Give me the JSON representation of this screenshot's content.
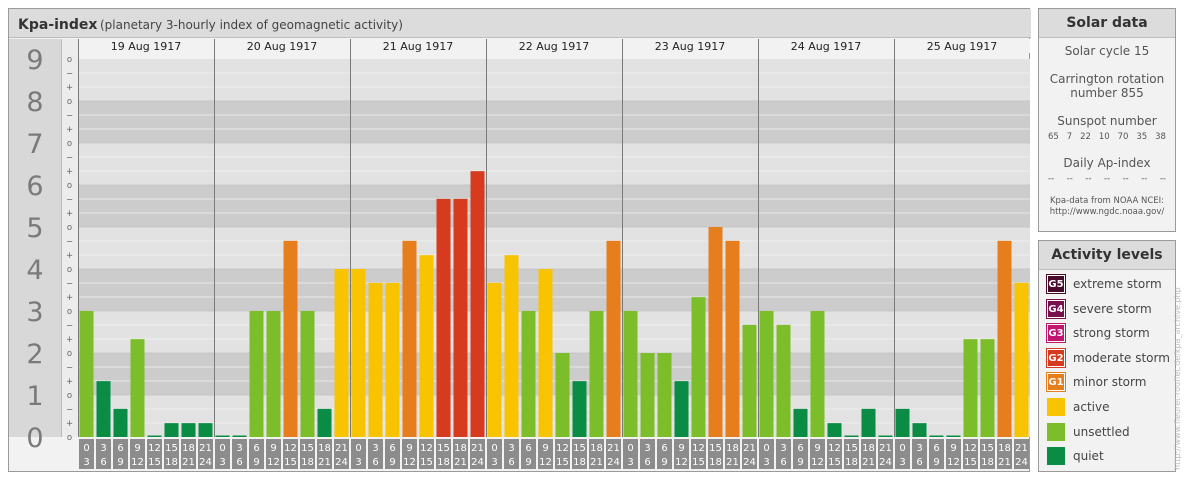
{
  "header": {
    "title": "Kpa-index",
    "subtitle": "(planetary 3-hourly index of geomagnetic activity)"
  },
  "chart_data": {
    "type": "bar",
    "title": "Kpa-index",
    "subtitle": "(planetary 3-hourly index of geomagnetic activity)",
    "ylim": [
      0,
      9
    ],
    "y_ticks": [
      "0",
      "1",
      "2",
      "3",
      "4",
      "5",
      "6",
      "7",
      "8",
      "9"
    ],
    "y_minor_ticks": [
      "−",
      "o",
      "+"
    ],
    "dates": [
      "19 Aug 1917",
      "20 Aug 1917",
      "21 Aug 1917",
      "22 Aug 1917",
      "23 Aug 1917",
      "24 Aug 1917",
      "25 Aug 1917"
    ],
    "interval_top": [
      "0",
      "3",
      "6",
      "9",
      "12",
      "15",
      "18",
      "21"
    ],
    "interval_bottom": [
      "3",
      "6",
      "9",
      "12",
      "15",
      "18",
      "21",
      "24"
    ],
    "values": [
      [
        3.0,
        1.33,
        0.67,
        2.33,
        0.0,
        0.33,
        0.33,
        0.33
      ],
      [
        0.0,
        0.0,
        3.0,
        3.0,
        4.67,
        3.0,
        0.67,
        4.0
      ],
      [
        4.0,
        3.67,
        3.67,
        4.67,
        4.33,
        5.67,
        5.67,
        6.33
      ],
      [
        3.67,
        4.33,
        3.0,
        4.0,
        2.0,
        1.33,
        3.0,
        4.67
      ],
      [
        3.0,
        2.0,
        2.0,
        1.33,
        3.33,
        5.0,
        4.67,
        2.67
      ],
      [
        3.0,
        2.67,
        0.67,
        3.0,
        0.33,
        0.0,
        0.67,
        0.0
      ],
      [
        0.67,
        0.33,
        0.0,
        0.0,
        2.33,
        2.33,
        4.67,
        3.67
      ]
    ],
    "colors": {
      "quiet": "#0a8c44",
      "unsettled": "#7cbd2a",
      "active": "#f8c300",
      "G1": "#e67e1e",
      "G2": "#d63b1f",
      "G3": "#c0146f",
      "G4": "#7a0f4d",
      "G5": "#4a0a2c"
    }
  },
  "solar_data": {
    "title": "Solar data",
    "cycle": "Solar cycle 15",
    "carrington_line1": "Carrington rotation",
    "carrington_line2": "number 855",
    "sunspot_label": "Sunspot number",
    "sunspot_values": [
      "65",
      "7",
      "22",
      "10",
      "70",
      "35",
      "38"
    ],
    "ap_label": "Daily Ap-index",
    "ap_values": [
      "--",
      "--",
      "--",
      "--",
      "--",
      "--",
      "--"
    ],
    "note_line1": "Kpa-data from NOAA NCEI:",
    "note_line2": "http://www.ngdc.noaa.gov/"
  },
  "activity_levels": {
    "title": "Activity levels",
    "items": [
      {
        "code": "G5",
        "label": "extreme storm",
        "color": "#4a0a2c"
      },
      {
        "code": "G4",
        "label": "severe storm",
        "color": "#7a0f4d"
      },
      {
        "code": "G3",
        "label": "strong storm",
        "color": "#c0146f"
      },
      {
        "code": "G2",
        "label": "moderate storm",
        "color": "#d63b1f"
      },
      {
        "code": "G1",
        "label": "minor storm",
        "color": "#e67e1e"
      },
      {
        "code": "",
        "label": "active",
        "color": "#f8c300"
      },
      {
        "code": "",
        "label": "unsettled",
        "color": "#7cbd2a"
      },
      {
        "code": "",
        "label": "quiet",
        "color": "#0a8c44"
      }
    ]
  },
  "credit": "http://www.fleuret-rouffet.de/kpa_archive.php"
}
